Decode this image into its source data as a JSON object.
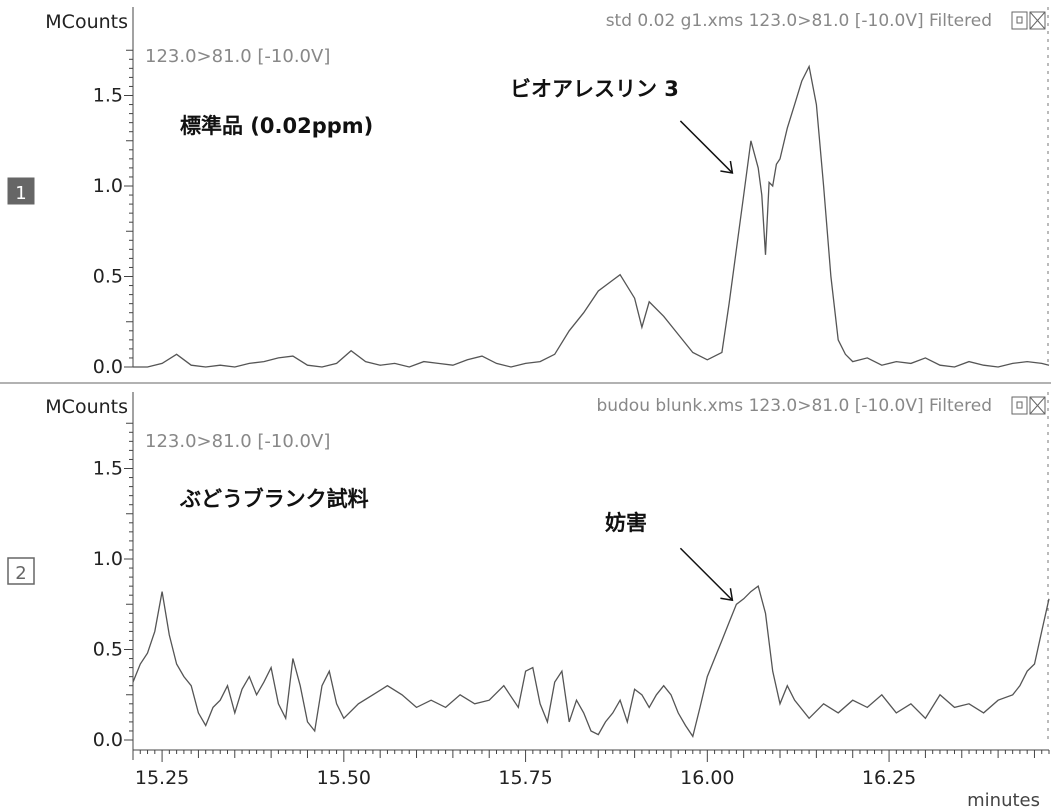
{
  "x_unit": "minutes",
  "x_ticks": [
    "15.25",
    "15.50",
    "15.75",
    "16.00",
    "16.25"
  ],
  "panels": [
    {
      "index": "1",
      "y_unit": "MCounts",
      "header": "std 0.02 g1.xms 123.0>81.0 [-10.0V] Filtered",
      "channel": "123.0>81.0 [-10.0V]",
      "sample_label": "標準品 (0.02ppm)",
      "annotation": "ビオアレスリン 3",
      "y_ticks": [
        "0.0",
        "0.5",
        "1.0",
        "1.5"
      ]
    },
    {
      "index": "2",
      "y_unit": "MCounts",
      "header": "budou blunk.xms 123.0>81.0 [-10.0V] Filtered",
      "channel": "123.0>81.0 [-10.0V]",
      "sample_label": "ぶどうブランク試料",
      "annotation": "妨害",
      "y_ticks": [
        "0.0",
        "0.5",
        "1.0",
        "1.5"
      ]
    }
  ],
  "chart_data": [
    {
      "type": "line",
      "title": "std 0.02 g1.xms 123.0>81.0 [-10.0V] Filtered",
      "xlabel": "minutes",
      "ylabel": "MCounts",
      "xlim": [
        15.21,
        16.47
      ],
      "ylim": [
        0.0,
        1.75
      ],
      "grid": false,
      "annotation": {
        "text": "ビオアレスリン 3",
        "points_to_x": 16.04,
        "points_to_y": 1.05
      },
      "series": [
        {
          "x": [
            15.21,
            15.23,
            15.25,
            15.27,
            15.29,
            15.31,
            15.33,
            15.35,
            15.37,
            15.39,
            15.41,
            15.43,
            15.45,
            15.47,
            15.49,
            15.51,
            15.53,
            15.55,
            15.57,
            15.59,
            15.61,
            15.63,
            15.65,
            15.67,
            15.69,
            15.71,
            15.73,
            15.75,
            15.77,
            15.79,
            15.81,
            15.83,
            15.85,
            15.87,
            15.88,
            15.9,
            15.91,
            15.92,
            15.94,
            15.96,
            15.98,
            16.0,
            16.02,
            16.03,
            16.04,
            16.05,
            16.06,
            16.07,
            16.075,
            16.08,
            16.085,
            16.09,
            16.095,
            16.1,
            16.11,
            16.12,
            16.13,
            16.14,
            16.15,
            16.16,
            16.17,
            16.18,
            16.19,
            16.2,
            16.22,
            16.24,
            16.26,
            16.28,
            16.3,
            16.32,
            16.34,
            16.36,
            16.38,
            16.4,
            16.42,
            16.44,
            16.46,
            16.47
          ],
          "y": [
            0.0,
            0.0,
            0.02,
            0.07,
            0.01,
            0.0,
            0.01,
            0.0,
            0.02,
            0.03,
            0.05,
            0.06,
            0.01,
            0.0,
            0.02,
            0.09,
            0.03,
            0.01,
            0.02,
            0.0,
            0.03,
            0.02,
            0.01,
            0.04,
            0.06,
            0.02,
            0.0,
            0.02,
            0.03,
            0.07,
            0.2,
            0.3,
            0.42,
            0.48,
            0.51,
            0.38,
            0.22,
            0.36,
            0.28,
            0.18,
            0.08,
            0.04,
            0.08,
            0.35,
            0.65,
            0.95,
            1.25,
            1.1,
            0.95,
            0.62,
            1.02,
            1.0,
            1.12,
            1.15,
            1.32,
            1.45,
            1.58,
            1.66,
            1.45,
            1.0,
            0.5,
            0.15,
            0.07,
            0.03,
            0.05,
            0.01,
            0.03,
            0.02,
            0.05,
            0.01,
            0.0,
            0.03,
            0.01,
            0.0,
            0.02,
            0.03,
            0.02,
            0.01
          ]
        }
      ]
    },
    {
      "type": "line",
      "title": "budou blunk.xms 123.0>81.0 [-10.0V] Filtered",
      "xlabel": "minutes",
      "ylabel": "MCounts",
      "xlim": [
        15.21,
        16.47
      ],
      "ylim": [
        0.0,
        1.75
      ],
      "grid": false,
      "annotation": {
        "text": "妨害",
        "points_to_x": 16.04,
        "points_to_y": 0.75
      },
      "series": [
        {
          "x": [
            15.21,
            15.22,
            15.23,
            15.24,
            15.25,
            15.26,
            15.27,
            15.28,
            15.29,
            15.3,
            15.31,
            15.32,
            15.33,
            15.34,
            15.35,
            15.36,
            15.37,
            15.38,
            15.39,
            15.4,
            15.41,
            15.42,
            15.43,
            15.44,
            15.45,
            15.46,
            15.47,
            15.48,
            15.49,
            15.5,
            15.52,
            15.54,
            15.56,
            15.58,
            15.6,
            15.62,
            15.64,
            15.66,
            15.68,
            15.7,
            15.72,
            15.74,
            15.75,
            15.76,
            15.77,
            15.78,
            15.79,
            15.8,
            15.81,
            15.82,
            15.83,
            15.84,
            15.85,
            15.86,
            15.87,
            15.88,
            15.89,
            15.9,
            15.91,
            15.92,
            15.93,
            15.94,
            15.95,
            15.96,
            15.97,
            15.98,
            15.99,
            16.0,
            16.01,
            16.02,
            16.03,
            16.04,
            16.05,
            16.06,
            16.07,
            16.08,
            16.09,
            16.1,
            16.11,
            16.12,
            16.14,
            16.16,
            16.18,
            16.2,
            16.22,
            16.24,
            16.26,
            16.28,
            16.3,
            16.32,
            16.34,
            16.36,
            16.38,
            16.4,
            16.42,
            16.43,
            16.44,
            16.45,
            16.46,
            16.47
          ],
          "y": [
            0.32,
            0.42,
            0.48,
            0.6,
            0.82,
            0.58,
            0.42,
            0.35,
            0.3,
            0.15,
            0.08,
            0.18,
            0.22,
            0.3,
            0.15,
            0.28,
            0.35,
            0.25,
            0.32,
            0.4,
            0.2,
            0.12,
            0.45,
            0.3,
            0.1,
            0.05,
            0.3,
            0.38,
            0.2,
            0.12,
            0.2,
            0.25,
            0.3,
            0.25,
            0.18,
            0.22,
            0.18,
            0.25,
            0.2,
            0.22,
            0.3,
            0.18,
            0.38,
            0.4,
            0.2,
            0.1,
            0.32,
            0.38,
            0.1,
            0.22,
            0.15,
            0.05,
            0.03,
            0.1,
            0.15,
            0.22,
            0.1,
            0.28,
            0.25,
            0.18,
            0.25,
            0.3,
            0.25,
            0.15,
            0.08,
            0.02,
            0.18,
            0.35,
            0.45,
            0.55,
            0.65,
            0.75,
            0.78,
            0.82,
            0.85,
            0.7,
            0.38,
            0.2,
            0.3,
            0.22,
            0.12,
            0.2,
            0.15,
            0.22,
            0.18,
            0.25,
            0.15,
            0.2,
            0.12,
            0.25,
            0.18,
            0.2,
            0.15,
            0.22,
            0.25,
            0.3,
            0.38,
            0.42,
            0.6,
            0.78
          ]
        }
      ]
    }
  ]
}
